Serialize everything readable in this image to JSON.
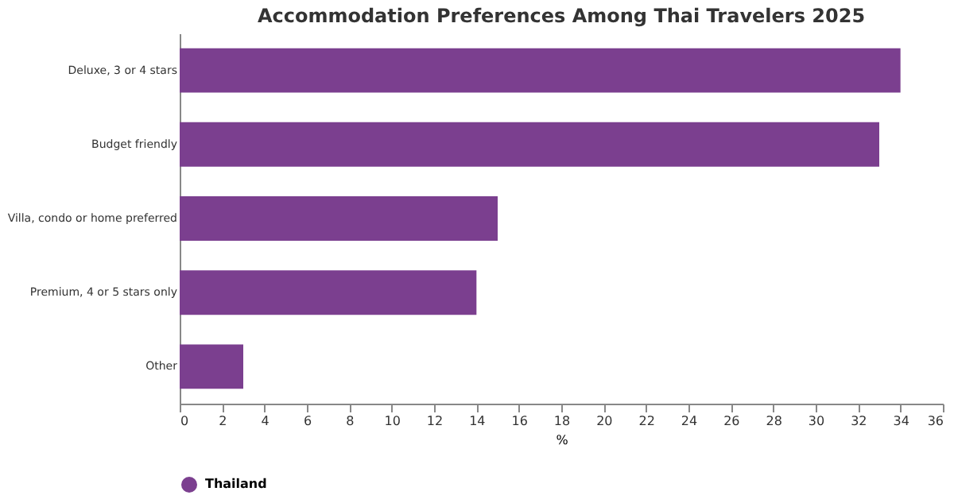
{
  "chart_data": {
    "type": "bar",
    "title": "Accommodation Preferences Among Thai Travelers 2025",
    "orientation": "horizontal",
    "categories": [
      "Deluxe, 3 or 4 stars",
      "Budget friendly",
      "Villa, condo or home preferred",
      "Premium, 4 or 5 stars only",
      "Other"
    ],
    "series": [
      {
        "name": "Thailand",
        "color": "#7b3f8f",
        "values": [
          34,
          33,
          15,
          14,
          3
        ]
      }
    ],
    "xlim": [
      0,
      36
    ],
    "xticks": [
      0,
      2,
      4,
      6,
      8,
      10,
      12,
      14,
      16,
      18,
      20,
      22,
      24,
      26,
      28,
      30,
      32,
      34,
      36
    ],
    "xlabel": "%",
    "legend": "bottom",
    "grid": false
  }
}
